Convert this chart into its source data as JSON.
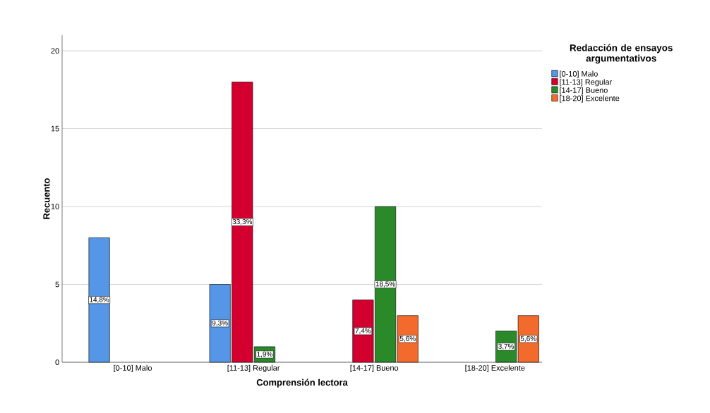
{
  "chart_data": {
    "type": "bar",
    "xlabel": "Comprensión lectora",
    "ylabel": "Recuento",
    "legend_title": "Redacción de ensayos argumentativos",
    "categories": [
      "[0-10]  Malo",
      "[11-13]  Regular",
      "[14-17]  Bueno",
      "[18-20]  Excelente"
    ],
    "series": [
      {
        "name": "[0-10]  Malo",
        "color": "#5596e6",
        "values": [
          8,
          5,
          null,
          null
        ]
      },
      {
        "name": "[11-13]  Regular",
        "color": "#d3002f",
        "values": [
          null,
          18,
          4,
          null
        ]
      },
      {
        "name": "[14-17]  Bueno",
        "color": "#2a8a2a",
        "values": [
          null,
          1,
          10,
          2
        ]
      },
      {
        "name": "[18-20]  Excelente",
        "color": "#f26a2c",
        "values": [
          null,
          null,
          3,
          3
        ]
      }
    ],
    "annotations": [
      "14,8%",
      "9,3%",
      "33,3%",
      "7,4%",
      "1,9%",
      "18,5%",
      "3,7%",
      "5,6%",
      "5,6%"
    ],
    "ylim": [
      0,
      21
    ],
    "yticks": [
      0,
      5,
      10,
      15,
      20
    ],
    "grid": "y",
    "legend": "top right"
  }
}
